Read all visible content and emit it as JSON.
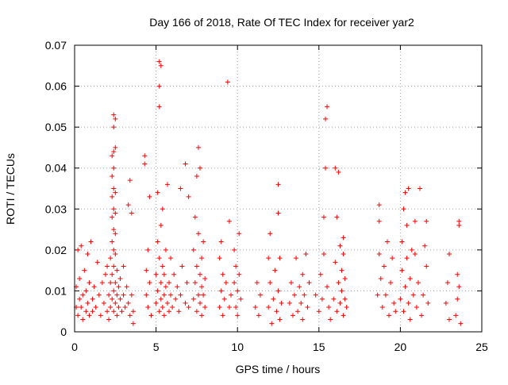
{
  "chart_data": {
    "type": "scatter",
    "title": "Day 166 of 2018, Rate Of TEC Index for receiver yar2",
    "xlabel": "GPS time / hours",
    "ylabel": "ROTI / TECUs",
    "xlim": [
      0,
      25
    ],
    "ylim": [
      0,
      0.07
    ],
    "xticks": [
      0,
      5,
      10,
      15,
      20,
      25
    ],
    "xtick_labels": [
      "0",
      "5",
      "10",
      "15",
      "20",
      "25"
    ],
    "yticks": [
      0,
      0.01,
      0.02,
      0.03,
      0.04,
      0.05,
      0.06,
      0.07
    ],
    "ytick_labels": [
      "0",
      "0.01",
      "0.02",
      "0.03",
      "0.04",
      "0.05",
      "0.06",
      "0.07"
    ],
    "grid": true,
    "marker": "+",
    "color": "#ff0000",
    "series": [
      {
        "name": "ROTI",
        "points": [
          [
            0.1,
            0.006
          ],
          [
            0.1,
            0.011
          ],
          [
            0.2,
            0.004
          ],
          [
            0.2,
            0.02
          ],
          [
            0.3,
            0.008
          ],
          [
            0.3,
            0.013
          ],
          [
            0.4,
            0.006
          ],
          [
            0.4,
            0.021
          ],
          [
            0.5,
            0.003
          ],
          [
            0.5,
            0.009
          ],
          [
            0.6,
            0.015
          ],
          [
            0.7,
            0.005
          ],
          [
            0.7,
            0.01
          ],
          [
            0.8,
            0.019
          ],
          [
            0.8,
            0.007
          ],
          [
            0.9,
            0.012
          ],
          [
            0.9,
            0.004
          ],
          [
            1.0,
            0.022
          ],
          [
            1.1,
            0.008
          ],
          [
            1.1,
            0.005
          ],
          [
            1.2,
            0.011
          ],
          [
            1.3,
            0.006
          ],
          [
            1.4,
            0.017
          ],
          [
            1.5,
            0.009
          ],
          [
            1.6,
            0.004
          ],
          [
            1.7,
            0.012
          ],
          [
            1.8,
            0.007
          ],
          [
            1.9,
            0.014
          ],
          [
            2.0,
            0.005
          ],
          [
            2.0,
            0.016
          ],
          [
            2.1,
            0.009
          ],
          [
            2.1,
            0.003
          ],
          [
            2.2,
            0.006
          ],
          [
            2.2,
            0.012
          ],
          [
            2.2,
            0.018
          ],
          [
            2.3,
            0.008
          ],
          [
            2.3,
            0.014
          ],
          [
            2.3,
            0.022
          ],
          [
            2.3,
            0.028
          ],
          [
            2.3,
            0.033
          ],
          [
            2.3,
            0.038
          ],
          [
            2.3,
            0.043
          ],
          [
            2.4,
            0.005
          ],
          [
            2.4,
            0.01
          ],
          [
            2.4,
            0.016
          ],
          [
            2.4,
            0.02
          ],
          [
            2.4,
            0.025
          ],
          [
            2.4,
            0.03
          ],
          [
            2.4,
            0.035
          ],
          [
            2.4,
            0.04
          ],
          [
            2.4,
            0.044
          ],
          [
            2.4,
            0.05
          ],
          [
            2.4,
            0.053
          ],
          [
            2.5,
            0.007
          ],
          [
            2.5,
            0.012
          ],
          [
            2.5,
            0.019
          ],
          [
            2.5,
            0.024
          ],
          [
            2.5,
            0.029
          ],
          [
            2.5,
            0.034
          ],
          [
            2.5,
            0.045
          ],
          [
            2.5,
            0.052
          ],
          [
            2.6,
            0.004
          ],
          [
            2.6,
            0.009
          ],
          [
            2.6,
            0.015
          ],
          [
            2.7,
            0.006
          ],
          [
            2.7,
            0.011
          ],
          [
            2.8,
            0.008
          ],
          [
            2.8,
            0.013
          ],
          [
            2.9,
            0.005
          ],
          [
            3.0,
            0.009
          ],
          [
            3.0,
            0.016
          ],
          [
            3.1,
            0.006
          ],
          [
            3.2,
            0.011
          ],
          [
            3.3,
            0.007
          ],
          [
            3.3,
            0.031
          ],
          [
            3.4,
            0.037
          ],
          [
            3.4,
            0.004
          ],
          [
            3.5,
            0.009
          ],
          [
            3.5,
            0.029
          ],
          [
            3.6,
            0.005
          ],
          [
            3.6,
            0.002
          ],
          [
            4.3,
            0.043
          ],
          [
            4.3,
            0.041
          ],
          [
            4.4,
            0.009
          ],
          [
            4.4,
            0.015
          ],
          [
            4.5,
            0.006
          ],
          [
            4.5,
            0.02
          ],
          [
            4.6,
            0.033
          ],
          [
            4.6,
            0.012
          ],
          [
            4.7,
            0.004
          ],
          [
            5.0,
            0.007
          ],
          [
            5.0,
            0.014
          ],
          [
            5.1,
            0.01
          ],
          [
            5.1,
            0.022
          ],
          [
            5.1,
            0.034
          ],
          [
            5.2,
            0.005
          ],
          [
            5.2,
            0.018
          ],
          [
            5.2,
            0.055
          ],
          [
            5.2,
            0.06
          ],
          [
            5.2,
            0.066
          ],
          [
            5.3,
            0.008
          ],
          [
            5.3,
            0.012
          ],
          [
            5.3,
            0.026
          ],
          [
            5.3,
            0.065
          ],
          [
            5.4,
            0.006
          ],
          [
            5.4,
            0.016
          ],
          [
            5.4,
            0.03
          ],
          [
            5.5,
            0.009
          ],
          [
            5.5,
            0.014
          ],
          [
            5.5,
            0.004
          ],
          [
            5.6,
            0.011
          ],
          [
            5.6,
            0.02
          ],
          [
            5.7,
            0.007
          ],
          [
            5.7,
            0.036
          ],
          [
            5.8,
            0.012
          ],
          [
            5.8,
            0.005
          ],
          [
            5.9,
            0.009
          ],
          [
            5.9,
            0.018
          ],
          [
            6.0,
            0.006
          ],
          [
            6.1,
            0.014
          ],
          [
            6.2,
            0.008
          ],
          [
            6.3,
            0.011
          ],
          [
            6.4,
            0.005
          ],
          [
            6.5,
            0.035
          ],
          [
            6.5,
            0.009
          ],
          [
            6.6,
            0.016
          ],
          [
            6.8,
            0.007
          ],
          [
            6.8,
            0.041
          ],
          [
            6.9,
            0.012
          ],
          [
            7.0,
            0.033
          ],
          [
            7.0,
            0.006
          ],
          [
            7.3,
            0.008
          ],
          [
            7.3,
            0.02
          ],
          [
            7.4,
            0.012
          ],
          [
            7.4,
            0.028
          ],
          [
            7.5,
            0.005
          ],
          [
            7.5,
            0.016
          ],
          [
            7.5,
            0.038
          ],
          [
            7.6,
            0.009
          ],
          [
            7.6,
            0.024
          ],
          [
            7.6,
            0.045
          ],
          [
            7.7,
            0.007
          ],
          [
            7.7,
            0.014
          ],
          [
            7.7,
            0.04
          ],
          [
            7.8,
            0.011
          ],
          [
            7.8,
            0.018
          ],
          [
            7.8,
            0.004
          ],
          [
            7.9,
            0.009
          ],
          [
            7.9,
            0.022
          ],
          [
            8.0,
            0.006
          ],
          [
            8.0,
            0.013
          ],
          [
            8.9,
            0.006
          ],
          [
            8.9,
            0.018
          ],
          [
            9.0,
            0.01
          ],
          [
            9.0,
            0.022
          ],
          [
            9.1,
            0.004
          ],
          [
            9.1,
            0.014
          ],
          [
            9.2,
            0.008
          ],
          [
            9.3,
            0.012
          ],
          [
            9.4,
            0.061
          ],
          [
            9.5,
            0.027
          ],
          [
            9.5,
            0.006
          ],
          [
            9.6,
            0.009
          ],
          [
            9.8,
            0.012
          ],
          [
            9.8,
            0.02
          ],
          [
            9.9,
            0.006
          ],
          [
            9.9,
            0.016
          ],
          [
            10.0,
            0.01
          ],
          [
            10.0,
            0.004
          ],
          [
            10.1,
            0.014
          ],
          [
            10.1,
            0.024
          ],
          [
            10.2,
            0.008
          ],
          [
            11.1,
            0.006
          ],
          [
            11.2,
            0.012
          ],
          [
            11.3,
            0.004
          ],
          [
            11.4,
            0.009
          ],
          [
            11.9,
            0.018
          ],
          [
            11.9,
            0.006
          ],
          [
            12.0,
            0.012
          ],
          [
            12.0,
            0.024
          ],
          [
            12.1,
            0.002
          ],
          [
            12.2,
            0.008
          ],
          [
            12.3,
            0.015
          ],
          [
            12.4,
            0.005
          ],
          [
            12.5,
            0.036
          ],
          [
            12.5,
            0.029
          ],
          [
            12.5,
            0.01
          ],
          [
            12.6,
            0.018
          ],
          [
            12.6,
            0.003
          ],
          [
            12.7,
            0.007
          ],
          [
            13.2,
            0.007
          ],
          [
            13.3,
            0.012
          ],
          [
            13.4,
            0.004
          ],
          [
            13.5,
            0.009
          ],
          [
            13.6,
            0.018
          ],
          [
            13.7,
            0.005
          ],
          [
            13.8,
            0.011
          ],
          [
            13.9,
            0.007
          ],
          [
            14.0,
            0.014
          ],
          [
            14.0,
            0.003
          ],
          [
            14.1,
            0.009
          ],
          [
            14.2,
            0.019
          ],
          [
            14.3,
            0.006
          ],
          [
            14.4,
            0.012
          ],
          [
            14.8,
            0.009
          ],
          [
            15.0,
            0.005
          ],
          [
            15.1,
            0.014
          ],
          [
            15.2,
            0.008
          ],
          [
            15.3,
            0.019
          ],
          [
            15.3,
            0.028
          ],
          [
            15.4,
            0.04
          ],
          [
            15.4,
            0.052
          ],
          [
            15.5,
            0.055
          ],
          [
            15.5,
            0.011
          ],
          [
            15.6,
            0.006
          ],
          [
            15.7,
            0.003
          ],
          [
            15.9,
            0.008
          ],
          [
            16.0,
            0.017
          ],
          [
            16.0,
            0.04
          ],
          [
            16.1,
            0.005
          ],
          [
            16.1,
            0.028
          ],
          [
            16.2,
            0.039
          ],
          [
            16.2,
            0.012
          ],
          [
            16.3,
            0.007
          ],
          [
            16.3,
            0.021
          ],
          [
            16.4,
            0.01
          ],
          [
            16.4,
            0.015
          ],
          [
            16.5,
            0.004
          ],
          [
            16.5,
            0.019
          ],
          [
            16.5,
            0.023
          ],
          [
            16.6,
            0.008
          ],
          [
            16.6,
            0.013
          ],
          [
            16.7,
            0.006
          ],
          [
            18.6,
            0.009
          ],
          [
            18.7,
            0.019
          ],
          [
            18.7,
            0.027
          ],
          [
            18.7,
            0.031
          ],
          [
            18.8,
            0.013
          ],
          [
            18.9,
            0.006
          ],
          [
            19.0,
            0.016
          ],
          [
            19.1,
            0.009
          ],
          [
            19.2,
            0.022
          ],
          [
            19.3,
            0.004
          ],
          [
            19.4,
            0.012
          ],
          [
            19.5,
            0.018
          ],
          [
            19.6,
            0.007
          ],
          [
            19.7,
            0.005
          ],
          [
            20.0,
            0.008
          ],
          [
            20.1,
            0.015
          ],
          [
            20.1,
            0.022
          ],
          [
            20.2,
            0.005
          ],
          [
            20.2,
            0.03
          ],
          [
            20.3,
            0.011
          ],
          [
            20.3,
            0.034
          ],
          [
            20.4,
            0.018
          ],
          [
            20.4,
            0.026
          ],
          [
            20.5,
            0.035
          ],
          [
            20.5,
            0.007
          ],
          [
            20.6,
            0.013
          ],
          [
            20.6,
            0.003
          ],
          [
            20.7,
            0.02
          ],
          [
            20.8,
            0.009
          ],
          [
            20.9,
            0.027
          ],
          [
            20.9,
            0.019
          ],
          [
            21.0,
            0.006
          ],
          [
            21.1,
            0.012
          ],
          [
            21.2,
            0.035
          ],
          [
            21.3,
            0.004
          ],
          [
            21.4,
            0.009
          ],
          [
            21.5,
            0.021
          ],
          [
            21.6,
            0.027
          ],
          [
            21.6,
            0.016
          ],
          [
            21.7,
            0.007
          ],
          [
            22.8,
            0.007
          ],
          [
            22.9,
            0.012
          ],
          [
            23.0,
            0.019
          ],
          [
            23.0,
            0.003
          ],
          [
            23.4,
            0.004
          ],
          [
            23.5,
            0.008
          ],
          [
            23.5,
            0.014
          ],
          [
            23.6,
            0.026
          ],
          [
            23.6,
            0.027
          ],
          [
            23.6,
            0.011
          ],
          [
            23.7,
            0.002
          ]
        ]
      }
    ]
  }
}
